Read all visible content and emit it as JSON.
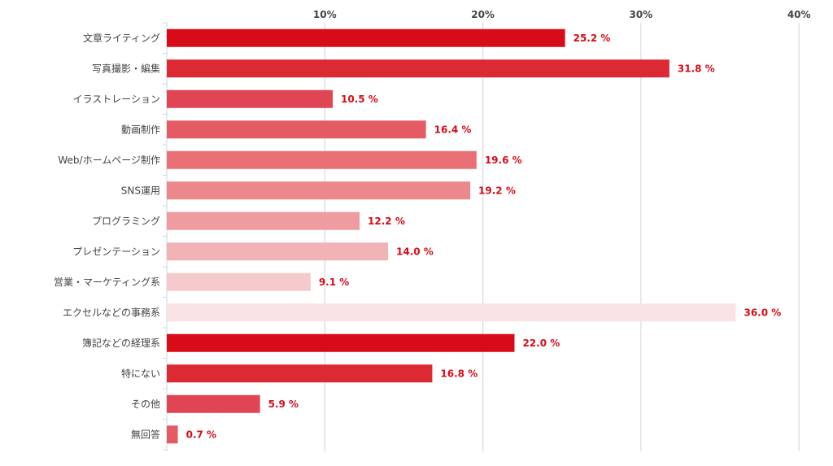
{
  "chart_data": {
    "type": "bar",
    "orientation": "horizontal",
    "title": "",
    "xlabel": "",
    "ylabel": "",
    "xlim": [
      0,
      40
    ],
    "x_ticks": [
      {
        "value": 10,
        "label": "10%"
      },
      {
        "value": 20,
        "label": "20%"
      },
      {
        "value": 30,
        "label": "30%"
      },
      {
        "value": 40,
        "label": "40%"
      }
    ],
    "grid": true,
    "tick_position": "top",
    "value_color": "#d70c18",
    "categories": [
      "文章ライティング",
      "写真撮影・編集",
      "イラストレーション",
      "動画制作",
      "Web/ホームページ制作",
      "SNS運用",
      "プログラミング",
      "プレゼンテーション",
      "営業・マーケティング系",
      "エクセルなどの事務系",
      "簿記などの経理系",
      "特にない",
      "その他",
      "無回答"
    ],
    "values": [
      25.2,
      31.8,
      10.5,
      16.4,
      19.6,
      19.2,
      12.2,
      14.0,
      9.1,
      36.0,
      22.0,
      16.8,
      5.9,
      0.7
    ],
    "value_labels": [
      "25.2 %",
      "31.8 %",
      "10.5 %",
      "16.4 %",
      "19.6 %",
      "19.2 %",
      "12.2 %",
      "14.0 %",
      "9.1 %",
      "36.0 %",
      "22.0 %",
      "16.8 %",
      "5.9 %",
      "0.7 %"
    ],
    "colors": [
      "#d70c18",
      "#dc2a35",
      "#e04553",
      "#e45b64",
      "#e87076",
      "#ec878c",
      "#ef9ca0",
      "#f2b3b6",
      "#f5cacc",
      "#fae3e4",
      "#d70c18",
      "#dc2a35",
      "#e04553",
      "#e45b64"
    ]
  }
}
